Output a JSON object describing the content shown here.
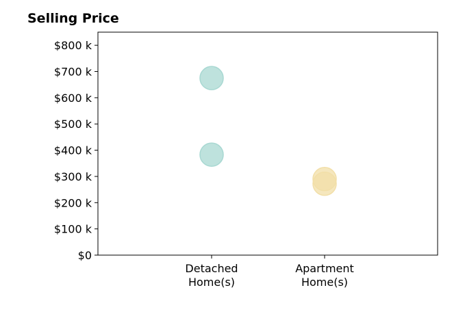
{
  "chart_data": {
    "type": "scatter",
    "title": "Selling Price",
    "xlabel": "",
    "ylabel": "",
    "categories": [
      {
        "line1": "Detached",
        "line2": "Home(s)"
      },
      {
        "line1": "Apartment",
        "line2": "Home(s)"
      }
    ],
    "ylim": [
      0,
      850
    ],
    "y_ticks": [
      {
        "value": 0,
        "label": "$0"
      },
      {
        "value": 100,
        "label": "$100 k"
      },
      {
        "value": 200,
        "label": "$200 k"
      },
      {
        "value": 300,
        "label": "$300 k"
      },
      {
        "value": 400,
        "label": "$400 k"
      },
      {
        "value": 500,
        "label": "$500 k"
      },
      {
        "value": 600,
        "label": "$600 k"
      },
      {
        "value": 700,
        "label": "$700 k"
      },
      {
        "value": 800,
        "label": "$800 k"
      }
    ],
    "points": [
      {
        "category": 0,
        "value": 675,
        "color": "#a8d8d2"
      },
      {
        "category": 0,
        "value": 383,
        "color": "#a8d8d2"
      },
      {
        "category": 1,
        "value": 290,
        "color": "#f2dfa8"
      },
      {
        "category": 1,
        "value": 272,
        "color": "#f2dfa8"
      }
    ],
    "grid": false
  }
}
